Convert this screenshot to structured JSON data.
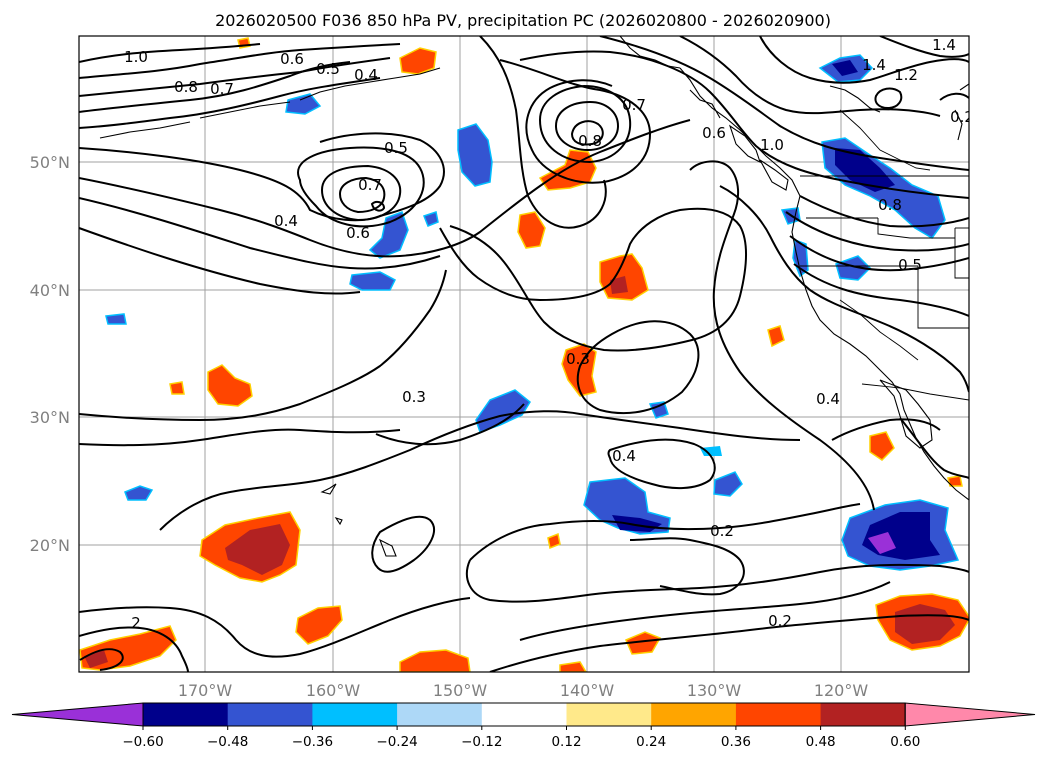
{
  "title": "2026020500 F036 850 hPa PV, precipitation PC (2026020800 - 2026020900)",
  "lat_labels": [
    "50°N",
    "40°N",
    "30°N",
    "20°N"
  ],
  "lon_labels": [
    "170°W",
    "160°W",
    "150°W",
    "140°W",
    "130°W",
    "120°W"
  ],
  "colorbar": {
    "ticks": [
      "−0.60",
      "−0.48",
      "−0.36",
      "−0.24",
      "−0.12",
      "0.12",
      "0.24",
      "0.36",
      "0.48",
      "0.60"
    ],
    "colors": [
      "#9a30d8",
      "#00008b",
      "#3454d1",
      "#00bfff",
      "#add8f7",
      "#ffffff",
      "#ffe98a",
      "#ffa500",
      "#ff4500",
      "#b22222",
      "#ff88aa"
    ]
  },
  "contour_labels": [
    "1.0",
    "0.8",
    "0.7",
    "0.6",
    "0.5",
    "0.4",
    "0.5",
    "0.7",
    "0.6",
    "0.4",
    "0.8",
    "0.7",
    "0.6",
    "1.0",
    "1.4",
    "1.2",
    "1.4",
    "0.8",
    "0.5",
    "0.4",
    "0.3",
    "0.3",
    "0.4",
    "0.2",
    "0.2",
    "2",
    "0.2"
  ]
}
